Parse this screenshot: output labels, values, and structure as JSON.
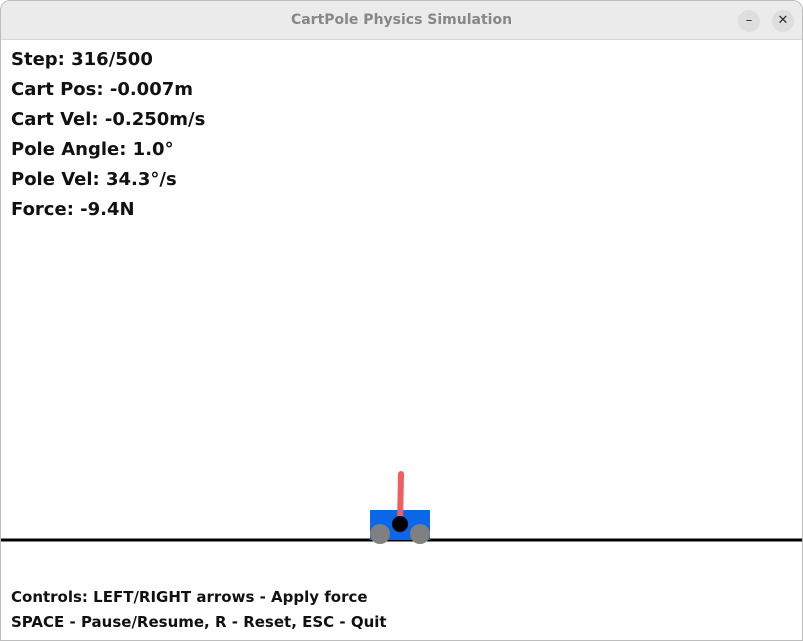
{
  "window": {
    "title": "CartPole Physics Simulation",
    "minimize_icon": "–",
    "close_icon": "✕"
  },
  "stats": {
    "step": "Step: 316/500",
    "cart_pos": "Cart Pos: -0.007m",
    "cart_vel": "Cart Vel: -0.250m/s",
    "pole_angle": "Pole Angle: 1.0°",
    "pole_vel": "Pole Vel: 34.3°/s",
    "force": "Force: -9.4N"
  },
  "controls": {
    "line1": "Controls: LEFT/RIGHT arrows - Apply force",
    "line2": "SPACE - Pause/Resume, R - Reset, ESC - Quit"
  },
  "colors": {
    "cart": "#0b66e8",
    "pole": "#f05f5f",
    "wheel": "#808080",
    "pivot": "#000000",
    "track": "#000000"
  }
}
